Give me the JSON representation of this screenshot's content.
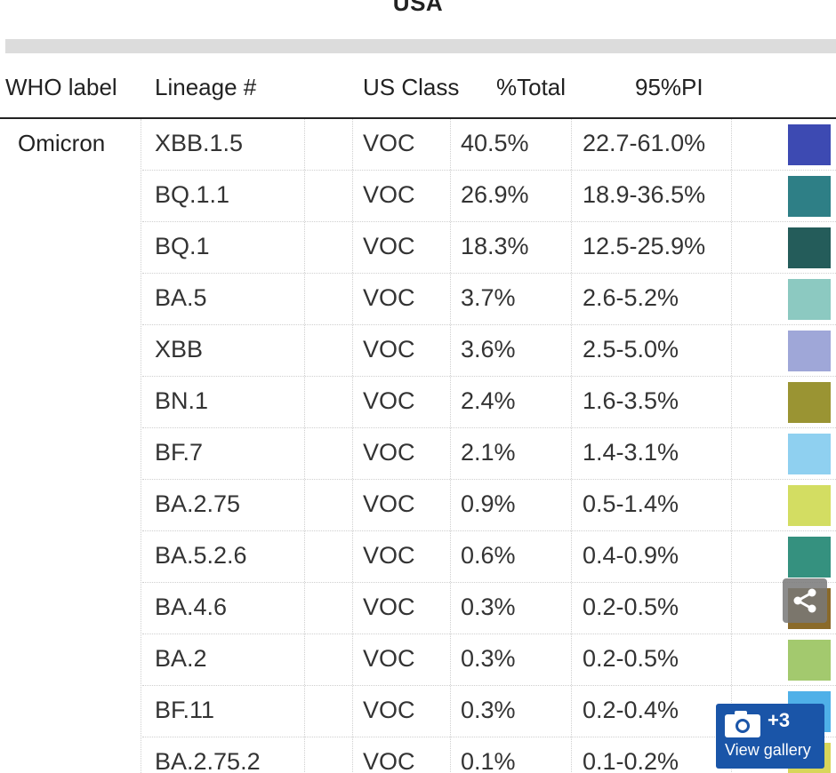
{
  "title": "USA",
  "headers": {
    "who_label": "WHO label",
    "lineage": "Lineage #",
    "us_class": "US Class",
    "total": "%Total",
    "pi": "95%PI"
  },
  "who_value": "Omicron",
  "rows": [
    {
      "lineage": "XBB.1.5",
      "us_class": "VOC",
      "total": "40.5%",
      "pi": "22.7-61.0%",
      "color": "#3d4ab2"
    },
    {
      "lineage": "BQ.1.1",
      "us_class": "VOC",
      "total": "26.9%",
      "pi": "18.9-36.5%",
      "color": "#2e7f86"
    },
    {
      "lineage": "BQ.1",
      "us_class": "VOC",
      "total": "18.3%",
      "pi": "12.5-25.9%",
      "color": "#245c5a"
    },
    {
      "lineage": "BA.5",
      "us_class": "VOC",
      "total": "3.7%",
      "pi": "2.6-5.2%",
      "color": "#8cc9c1"
    },
    {
      "lineage": "XBB",
      "us_class": "VOC",
      "total": "3.6%",
      "pi": "2.5-5.0%",
      "color": "#9fa7d8"
    },
    {
      "lineage": "BN.1",
      "us_class": "VOC",
      "total": "2.4%",
      "pi": "1.6-3.5%",
      "color": "#9a9433"
    },
    {
      "lineage": "BF.7",
      "us_class": "VOC",
      "total": "2.1%",
      "pi": "1.4-3.1%",
      "color": "#8fd0f0"
    },
    {
      "lineage": "BA.2.75",
      "us_class": "VOC",
      "total": "0.9%",
      "pi": "0.5-1.4%",
      "color": "#d3dd62"
    },
    {
      "lineage": "BA.5.2.6",
      "us_class": "VOC",
      "total": "0.6%",
      "pi": "0.4-0.9%",
      "color": "#35917f"
    },
    {
      "lineage": "BA.4.6",
      "us_class": "VOC",
      "total": "0.3%",
      "pi": "0.2-0.5%",
      "color": "#8a6a2a"
    },
    {
      "lineage": "BA.2",
      "us_class": "VOC",
      "total": "0.3%",
      "pi": "0.2-0.5%",
      "color": "#a3c96e"
    },
    {
      "lineage": "BF.11",
      "us_class": "VOC",
      "total": "0.3%",
      "pi": "0.2-0.4%",
      "color": "#4fb0e8"
    },
    {
      "lineage": "BA.2.75.2",
      "us_class": "VOC",
      "total": "0.1%",
      "pi": "0.1-0.2%",
      "color": "#d8d65a"
    }
  ],
  "gallery": {
    "count": "+3",
    "label": "View gallery",
    "icon": "camera-icon"
  },
  "share": {
    "icon": "share-icon"
  },
  "colors": {
    "gallery_bg": "#1a55a8",
    "header_rule": "#222222"
  }
}
